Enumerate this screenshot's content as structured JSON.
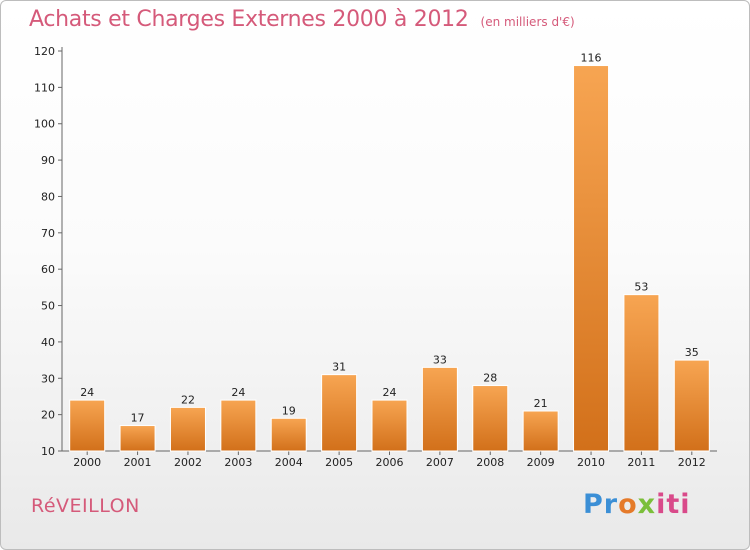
{
  "header": {
    "title": "Achats et Charges Externes 2000 à 2012",
    "subtitle": "(en milliers d'€)"
  },
  "footer": {
    "commune": "RéVEILLON",
    "brand": {
      "p1": "Pr",
      "p2": "o",
      "p3": "x",
      "p4": "iti"
    }
  },
  "colors": {
    "bar_light": "#f7a552",
    "bar_dark": "#d2701a",
    "title": "#d55a7a"
  },
  "chart_data": {
    "type": "bar",
    "title": "Achats et Charges Externes 2000 à 2012",
    "subtitle": "(en milliers d'€)",
    "categories": [
      "2000",
      "2001",
      "2002",
      "2003",
      "2004",
      "2005",
      "2006",
      "2007",
      "2008",
      "2009",
      "2010",
      "2011",
      "2012"
    ],
    "values": [
      24,
      17,
      22,
      24,
      19,
      31,
      24,
      33,
      28,
      21,
      116,
      53,
      35
    ],
    "ylim": [
      10,
      120
    ],
    "yticks": [
      10,
      20,
      30,
      40,
      50,
      60,
      70,
      80,
      90,
      100,
      110,
      120
    ],
    "grid": false,
    "legend": "none"
  }
}
